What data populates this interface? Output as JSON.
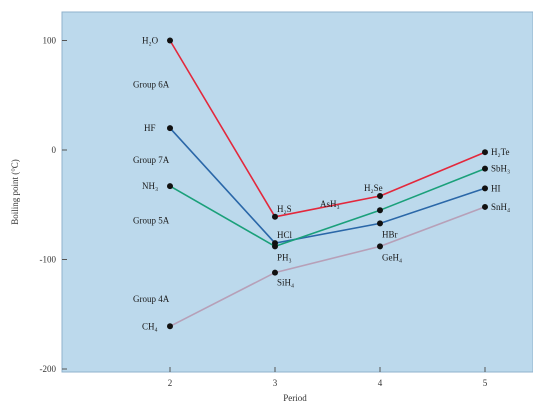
{
  "chart_data": {
    "type": "line",
    "xlabel": "Period",
    "ylabel": "Boiling point (°C)",
    "x": [
      2,
      3,
      4,
      5
    ],
    "x_ticks": [
      "2",
      "3",
      "4",
      "5"
    ],
    "y_ticks": [
      "100",
      "0",
      "-100",
      "-200"
    ],
    "y_tick_values": [
      100,
      0,
      -100,
      -200
    ],
    "xlim": [
      1,
      5.4
    ],
    "ylim": [
      -200,
      125
    ],
    "grid": false,
    "background": "#bcd9ec",
    "series": [
      {
        "group": "Group 6A",
        "color": "#e3283c",
        "x": [
          2,
          3,
          4,
          5
        ],
        "y": [
          100,
          -61,
          -42,
          -2
        ],
        "labels": [
          "H₂O",
          "H₂S",
          "H₂Se",
          "H₂Te"
        ]
      },
      {
        "group": "Group 7A",
        "color": "#2a67a8",
        "x": [
          2,
          3,
          4,
          5
        ],
        "y": [
          20,
          -85,
          -67,
          -35
        ],
        "labels": [
          "HF",
          "HCl",
          "HBr",
          "HI"
        ]
      },
      {
        "group": "Group 5A",
        "color": "#1aa07a",
        "x": [
          2,
          3,
          4,
          5
        ],
        "y": [
          -33,
          -88,
          -55,
          -17
        ],
        "labels": [
          "NH₃",
          "PH₃",
          "AsH₃",
          "SbH₃"
        ]
      },
      {
        "group": "Group 4A",
        "color": "#b7a0b8",
        "x": [
          2,
          3,
          4,
          5
        ],
        "y": [
          -161,
          -112,
          -88,
          -52
        ],
        "labels": [
          "CH₄",
          "SiH₄",
          "GeH₄",
          "SnH₄"
        ]
      }
    ]
  }
}
